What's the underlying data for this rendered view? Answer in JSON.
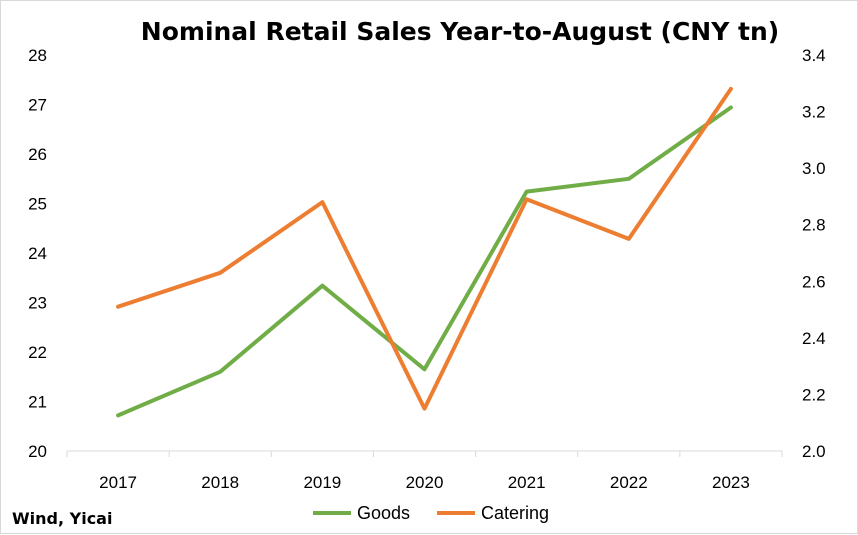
{
  "chart_data": {
    "type": "line",
    "title": "Nominal Retail Sales Year-to-August (CNY tn)",
    "source": "Wind, Yicai",
    "categories": [
      "2017",
      "2018",
      "2019",
      "2020",
      "2021",
      "2022",
      "2023"
    ],
    "y_left": {
      "min": 20,
      "max": 28,
      "ticks": [
        "20",
        "21",
        "22",
        "23",
        "24",
        "25",
        "26",
        "27",
        "28"
      ]
    },
    "y_right": {
      "min": 2.0,
      "max": 3.4,
      "ticks": [
        "2.0",
        "2.2",
        "2.4",
        "2.6",
        "2.8",
        "3.0",
        "3.2",
        "3.4"
      ]
    },
    "grid": false,
    "legend_position": "bottom",
    "series": [
      {
        "name": "Goods",
        "axis": "left",
        "color": "#70ad47",
        "values": [
          20.72,
          21.6,
          23.34,
          21.65,
          25.24,
          25.5,
          26.94
        ]
      },
      {
        "name": "Catering",
        "axis": "right",
        "color": "#ed7d31",
        "values": [
          2.51,
          2.63,
          2.88,
          2.15,
          2.89,
          2.75,
          3.28
        ]
      }
    ]
  }
}
